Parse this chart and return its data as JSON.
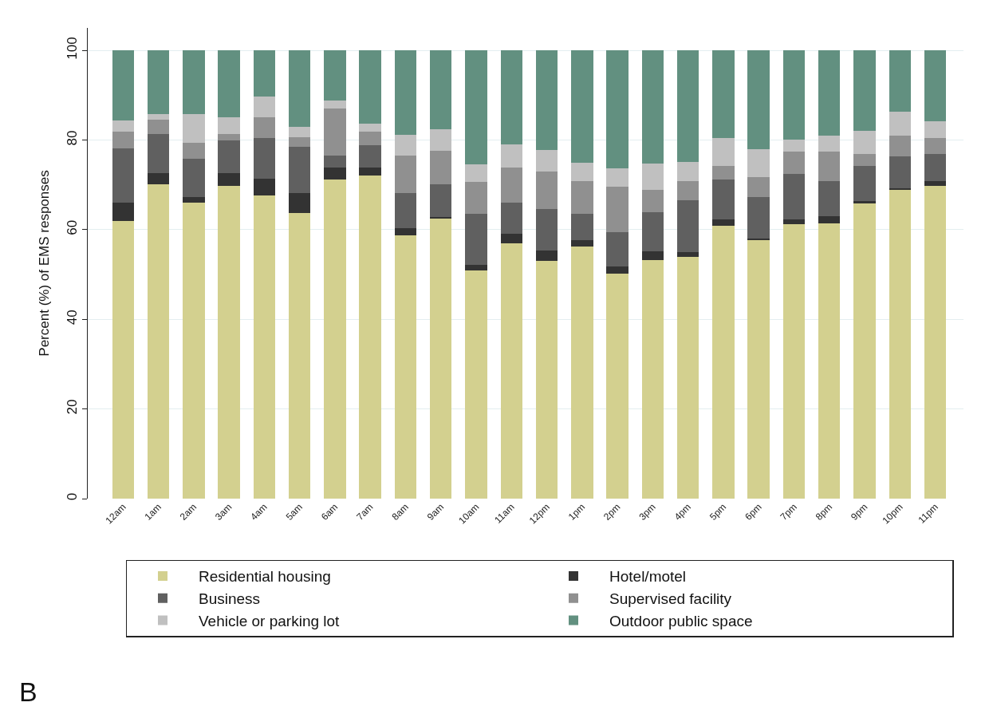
{
  "chart_data": {
    "type": "bar",
    "stacked": true,
    "ylabel": "Percent (%) of EMS responses",
    "categories": [
      "12am",
      "1am",
      "2am",
      "3am",
      "4am",
      "5am",
      "6am",
      "7am",
      "8am",
      "9am",
      "10am",
      "11am",
      "12pm",
      "1pm",
      "2pm",
      "3pm",
      "4pm",
      "5pm",
      "6pm",
      "7pm",
      "8pm",
      "9pm",
      "10pm",
      "11pm"
    ],
    "series": [
      {
        "name": "Residential housing",
        "color": "#d3d08f",
        "values": [
          62.0,
          70.2,
          66.0,
          69.7,
          67.6,
          63.8,
          71.1,
          72.1,
          58.7,
          62.4,
          50.9,
          56.9,
          53.1,
          56.3,
          50.2,
          53.3,
          53.9,
          60.8,
          57.7,
          61.2,
          61.4,
          66.0,
          69.0,
          69.7
        ]
      },
      {
        "name": "Hotel/motel",
        "color": "#333333",
        "values": [
          4.0,
          2.4,
          1.2,
          2.9,
          3.7,
          4.4,
          2.8,
          1.7,
          1.6,
          0.5,
          1.2,
          2.2,
          2.3,
          1.3,
          1.6,
          1.8,
          1.1,
          1.5,
          0.3,
          1.1,
          1.6,
          0.3,
          0.2,
          1.1
        ]
      },
      {
        "name": "Business",
        "color": "#606060",
        "values": [
          12.1,
          8.8,
          8.6,
          7.3,
          9.2,
          10.2,
          2.7,
          5.0,
          7.9,
          7.3,
          11.5,
          6.9,
          9.2,
          6.0,
          7.7,
          8.8,
          11.6,
          8.8,
          9.3,
          10.1,
          7.8,
          7.9,
          7.1,
          6.1
        ]
      },
      {
        "name": "Supervised facility",
        "color": "#909090",
        "values": [
          3.8,
          3.1,
          3.6,
          1.5,
          4.6,
          2.3,
          10.4,
          3.1,
          8.4,
          7.4,
          7.0,
          7.9,
          8.4,
          7.2,
          10.0,
          4.9,
          4.2,
          3.1,
          4.4,
          5.1,
          6.7,
          2.7,
          4.6,
          3.6
        ]
      },
      {
        "name": "Vehicle or parking lot",
        "color": "#c0c0c0",
        "values": [
          2.4,
          1.2,
          6.3,
          3.7,
          4.6,
          2.3,
          1.8,
          1.7,
          4.5,
          4.8,
          4.0,
          5.2,
          4.8,
          4.2,
          4.1,
          6.0,
          4.3,
          6.3,
          6.2,
          2.5,
          3.4,
          5.1,
          5.4,
          3.7
        ]
      },
      {
        "name": "Outdoor public space",
        "color": "#629080",
        "values": [
          15.7,
          14.3,
          14.3,
          14.9,
          10.3,
          17.0,
          11.2,
          16.4,
          18.9,
          17.6,
          25.4,
          20.9,
          22.2,
          25.0,
          26.4,
          25.2,
          24.9,
          19.5,
          22.1,
          20.0,
          19.1,
          18.0,
          13.7,
          15.8
        ]
      }
    ],
    "ylim": [
      0,
      105
    ],
    "yticks": [
      0,
      20,
      40,
      60,
      80,
      100
    ],
    "grid": "y",
    "legend": "bottom",
    "annotations": [
      "B"
    ]
  }
}
